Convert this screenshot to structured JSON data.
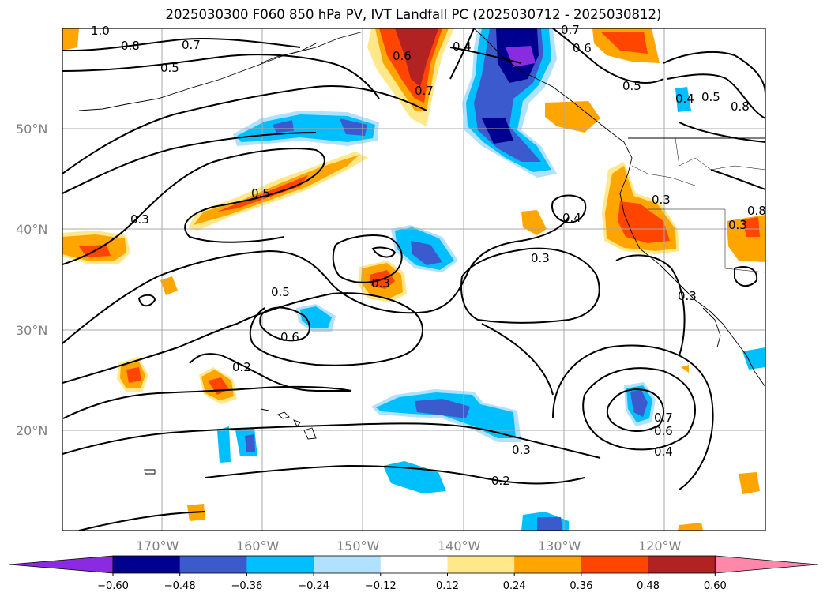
{
  "title": "2025030300 F060 850 hPa PV, IVT Landfall PC (2025030712 - 2025030812)",
  "lat_labels": [
    "50°N",
    "40°N",
    "30°N",
    "20°N"
  ],
  "lon_labels": [
    "170°W",
    "160°W",
    "150°W",
    "140°W",
    "130°W",
    "120°W"
  ],
  "colorbar": {
    "ticks": [
      "−0.60",
      "−0.48",
      "−0.36",
      "−0.24",
      "−0.12",
      "0.12",
      "0.24",
      "0.36",
      "0.48",
      "0.60"
    ],
    "colors": [
      "#8a2be2",
      "#000090",
      "#3a5acd",
      "#00bfff",
      "#b0e2ff",
      "#ffffff",
      "#ffe88a",
      "#ffa500",
      "#ff4500",
      "#b22222",
      "#ff88aa"
    ]
  },
  "contour_labels": [
    "1.0",
    "0.8",
    "0.7",
    "0.5",
    "0.6",
    "0.4",
    "0.7",
    "0.6",
    "0.7",
    "0.5",
    "0.4",
    "0.5",
    "0.8",
    "0.5",
    "0.3",
    "0.4",
    "0.3",
    "0.3",
    "0.3",
    "0.5",
    "0.6",
    "0.3",
    "0.2",
    "0.3",
    "0.2",
    "0.7",
    "0.6",
    "0.4",
    "0.3",
    "0.8"
  ]
}
